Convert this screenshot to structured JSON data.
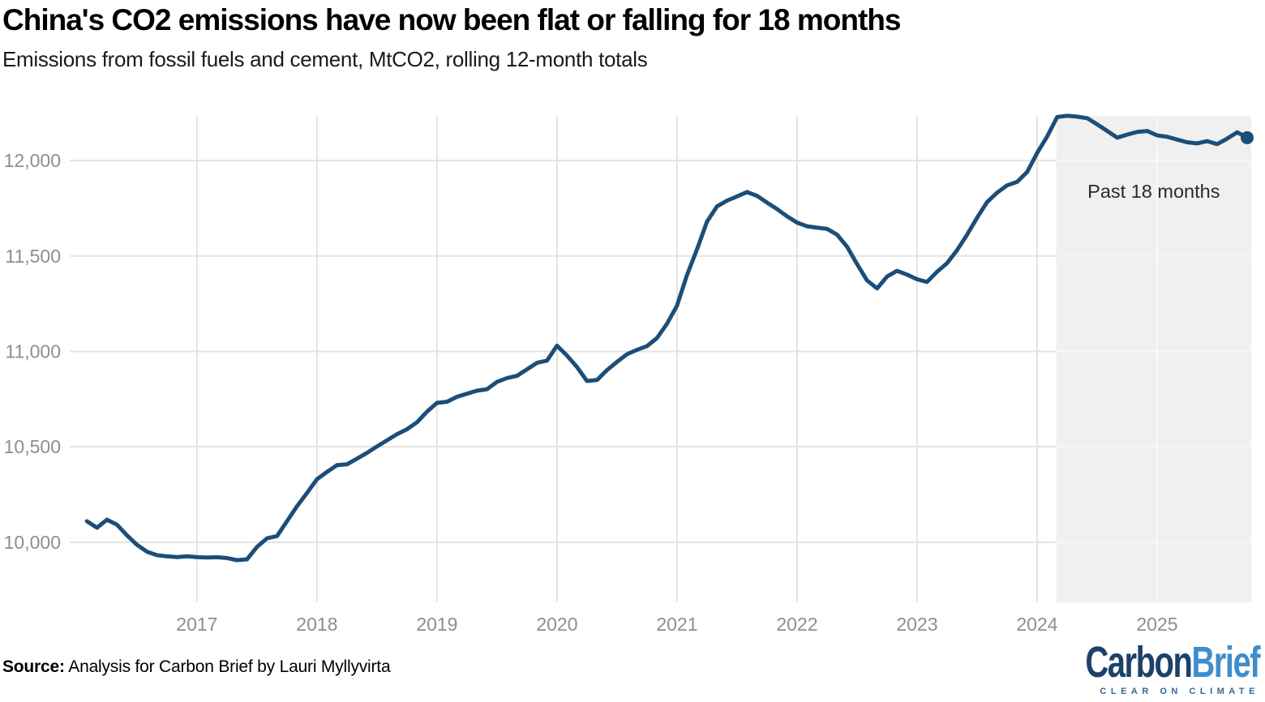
{
  "header": {
    "title": "China's CO2 emissions have now been flat or falling for 18 months",
    "subtitle": "Emissions from fossil fuels and cement, MtCO2, rolling 12-month totals"
  },
  "footer": {
    "source_label": "Source:",
    "source_text": "Analysis for Carbon Brief by Lauri Myllyvirta"
  },
  "logo": {
    "part1": "Carbon",
    "part2": "Brief",
    "tagline": "CLEAR ON CLIMATE"
  },
  "colors": {
    "line": "#1b4e79",
    "band": "#f0f0f0",
    "band_gridline": "#f8f8f8",
    "grid": "#e3e3e3",
    "tick_label": "#8e8e8e",
    "annotation": "#2b2b2b",
    "logo_navy": "#1d4168",
    "logo_blue": "#3e8ecd"
  },
  "chart_data": {
    "type": "line",
    "title": "China's CO2 emissions have now been flat or falling for 18 months",
    "subtitle": "Emissions from fossil fuels and cement, MtCO2, rolling 12-month totals",
    "unit": "MtCO2",
    "grid": true,
    "xlim": [
      2015.94,
      2025.784
    ],
    "ylim": [
      9685,
      12234
    ],
    "y_ticks": [
      {
        "value": 10000,
        "label": "10,000"
      },
      {
        "value": 10500,
        "label": "10,500"
      },
      {
        "value": 11000,
        "label": "11,000"
      },
      {
        "value": 11500,
        "label": "11,500"
      },
      {
        "value": 12000,
        "label": "12,000"
      }
    ],
    "x_ticks": [
      {
        "value": 2017,
        "label": "2017"
      },
      {
        "value": 2018,
        "label": "2018"
      },
      {
        "value": 2019,
        "label": "2019"
      },
      {
        "value": 2020,
        "label": "2020"
      },
      {
        "value": 2021,
        "label": "2021"
      },
      {
        "value": 2022,
        "label": "2022"
      },
      {
        "value": 2023,
        "label": "2023"
      },
      {
        "value": 2024,
        "label": "2024"
      },
      {
        "value": 2025,
        "label": "2025"
      }
    ],
    "highlight_band": {
      "label": "Past 18 months",
      "from": 2024.16,
      "to": 2025.784
    },
    "series": [
      {
        "name": "CO2 emissions, rolling 12-month total (MtCO2)",
        "points": [
          [
            2016.083,
            10110
          ],
          [
            2016.167,
            10076
          ],
          [
            2016.25,
            10118
          ],
          [
            2016.333,
            10092
          ],
          [
            2016.417,
            10036
          ],
          [
            2016.5,
            9986
          ],
          [
            2016.583,
            9950
          ],
          [
            2016.667,
            9932
          ],
          [
            2016.75,
            9926
          ],
          [
            2016.833,
            9922
          ],
          [
            2016.917,
            9926
          ],
          [
            2017,
            9922
          ],
          [
            2017.083,
            9920
          ],
          [
            2017.167,
            9921
          ],
          [
            2017.25,
            9917
          ],
          [
            2017.333,
            9906
          ],
          [
            2017.417,
            9910
          ],
          [
            2017.5,
            9975
          ],
          [
            2017.583,
            10020
          ],
          [
            2017.667,
            10032
          ],
          [
            2017.75,
            10110
          ],
          [
            2017.833,
            10188
          ],
          [
            2017.917,
            10258
          ],
          [
            2018,
            10330
          ],
          [
            2018.083,
            10368
          ],
          [
            2018.167,
            10404
          ],
          [
            2018.25,
            10408
          ],
          [
            2018.333,
            10438
          ],
          [
            2018.417,
            10468
          ],
          [
            2018.5,
            10502
          ],
          [
            2018.583,
            10534
          ],
          [
            2018.667,
            10566
          ],
          [
            2018.75,
            10592
          ],
          [
            2018.833,
            10628
          ],
          [
            2018.917,
            10684
          ],
          [
            2019,
            10730
          ],
          [
            2019.083,
            10736
          ],
          [
            2019.167,
            10762
          ],
          [
            2019.25,
            10778
          ],
          [
            2019.333,
            10794
          ],
          [
            2019.417,
            10802
          ],
          [
            2019.5,
            10840
          ],
          [
            2019.583,
            10860
          ],
          [
            2019.667,
            10872
          ],
          [
            2019.75,
            10906
          ],
          [
            2019.833,
            10940
          ],
          [
            2019.917,
            10952
          ],
          [
            2020,
            11030
          ],
          [
            2020.083,
            10978
          ],
          [
            2020.167,
            10918
          ],
          [
            2020.25,
            10845
          ],
          [
            2020.333,
            10850
          ],
          [
            2020.417,
            10902
          ],
          [
            2020.5,
            10945
          ],
          [
            2020.583,
            10985
          ],
          [
            2020.667,
            11008
          ],
          [
            2020.75,
            11028
          ],
          [
            2020.833,
            11070
          ],
          [
            2020.917,
            11145
          ],
          [
            2021,
            11240
          ],
          [
            2021.083,
            11400
          ],
          [
            2021.167,
            11535
          ],
          [
            2021.25,
            11680
          ],
          [
            2021.333,
            11760
          ],
          [
            2021.417,
            11790
          ],
          [
            2021.5,
            11812
          ],
          [
            2021.583,
            11835
          ],
          [
            2021.667,
            11815
          ],
          [
            2021.75,
            11780
          ],
          [
            2021.833,
            11746
          ],
          [
            2021.917,
            11708
          ],
          [
            2022,
            11675
          ],
          [
            2022.083,
            11656
          ],
          [
            2022.167,
            11648
          ],
          [
            2022.25,
            11642
          ],
          [
            2022.333,
            11612
          ],
          [
            2022.417,
            11548
          ],
          [
            2022.5,
            11458
          ],
          [
            2022.583,
            11372
          ],
          [
            2022.667,
            11330
          ],
          [
            2022.75,
            11392
          ],
          [
            2022.833,
            11422
          ],
          [
            2022.917,
            11402
          ],
          [
            2023,
            11378
          ],
          [
            2023.083,
            11364
          ],
          [
            2023.167,
            11418
          ],
          [
            2023.25,
            11462
          ],
          [
            2023.333,
            11530
          ],
          [
            2023.417,
            11612
          ],
          [
            2023.5,
            11700
          ],
          [
            2023.583,
            11782
          ],
          [
            2023.667,
            11832
          ],
          [
            2023.75,
            11870
          ],
          [
            2023.833,
            11888
          ],
          [
            2023.917,
            11940
          ],
          [
            2024,
            12040
          ],
          [
            2024.083,
            12125
          ],
          [
            2024.167,
            12228
          ],
          [
            2024.25,
            12235
          ],
          [
            2024.333,
            12230
          ],
          [
            2024.417,
            12222
          ],
          [
            2024.5,
            12190
          ],
          [
            2024.583,
            12156
          ],
          [
            2024.667,
            12120
          ],
          [
            2024.75,
            12136
          ],
          [
            2024.833,
            12150
          ],
          [
            2024.917,
            12155
          ],
          [
            2025,
            12132
          ],
          [
            2025.083,
            12125
          ],
          [
            2025.167,
            12110
          ],
          [
            2025.25,
            12096
          ],
          [
            2025.333,
            12090
          ],
          [
            2025.417,
            12102
          ],
          [
            2025.5,
            12086
          ],
          [
            2025.583,
            12115
          ],
          [
            2025.667,
            12148
          ],
          [
            2025.75,
            12120
          ]
        ]
      }
    ]
  }
}
